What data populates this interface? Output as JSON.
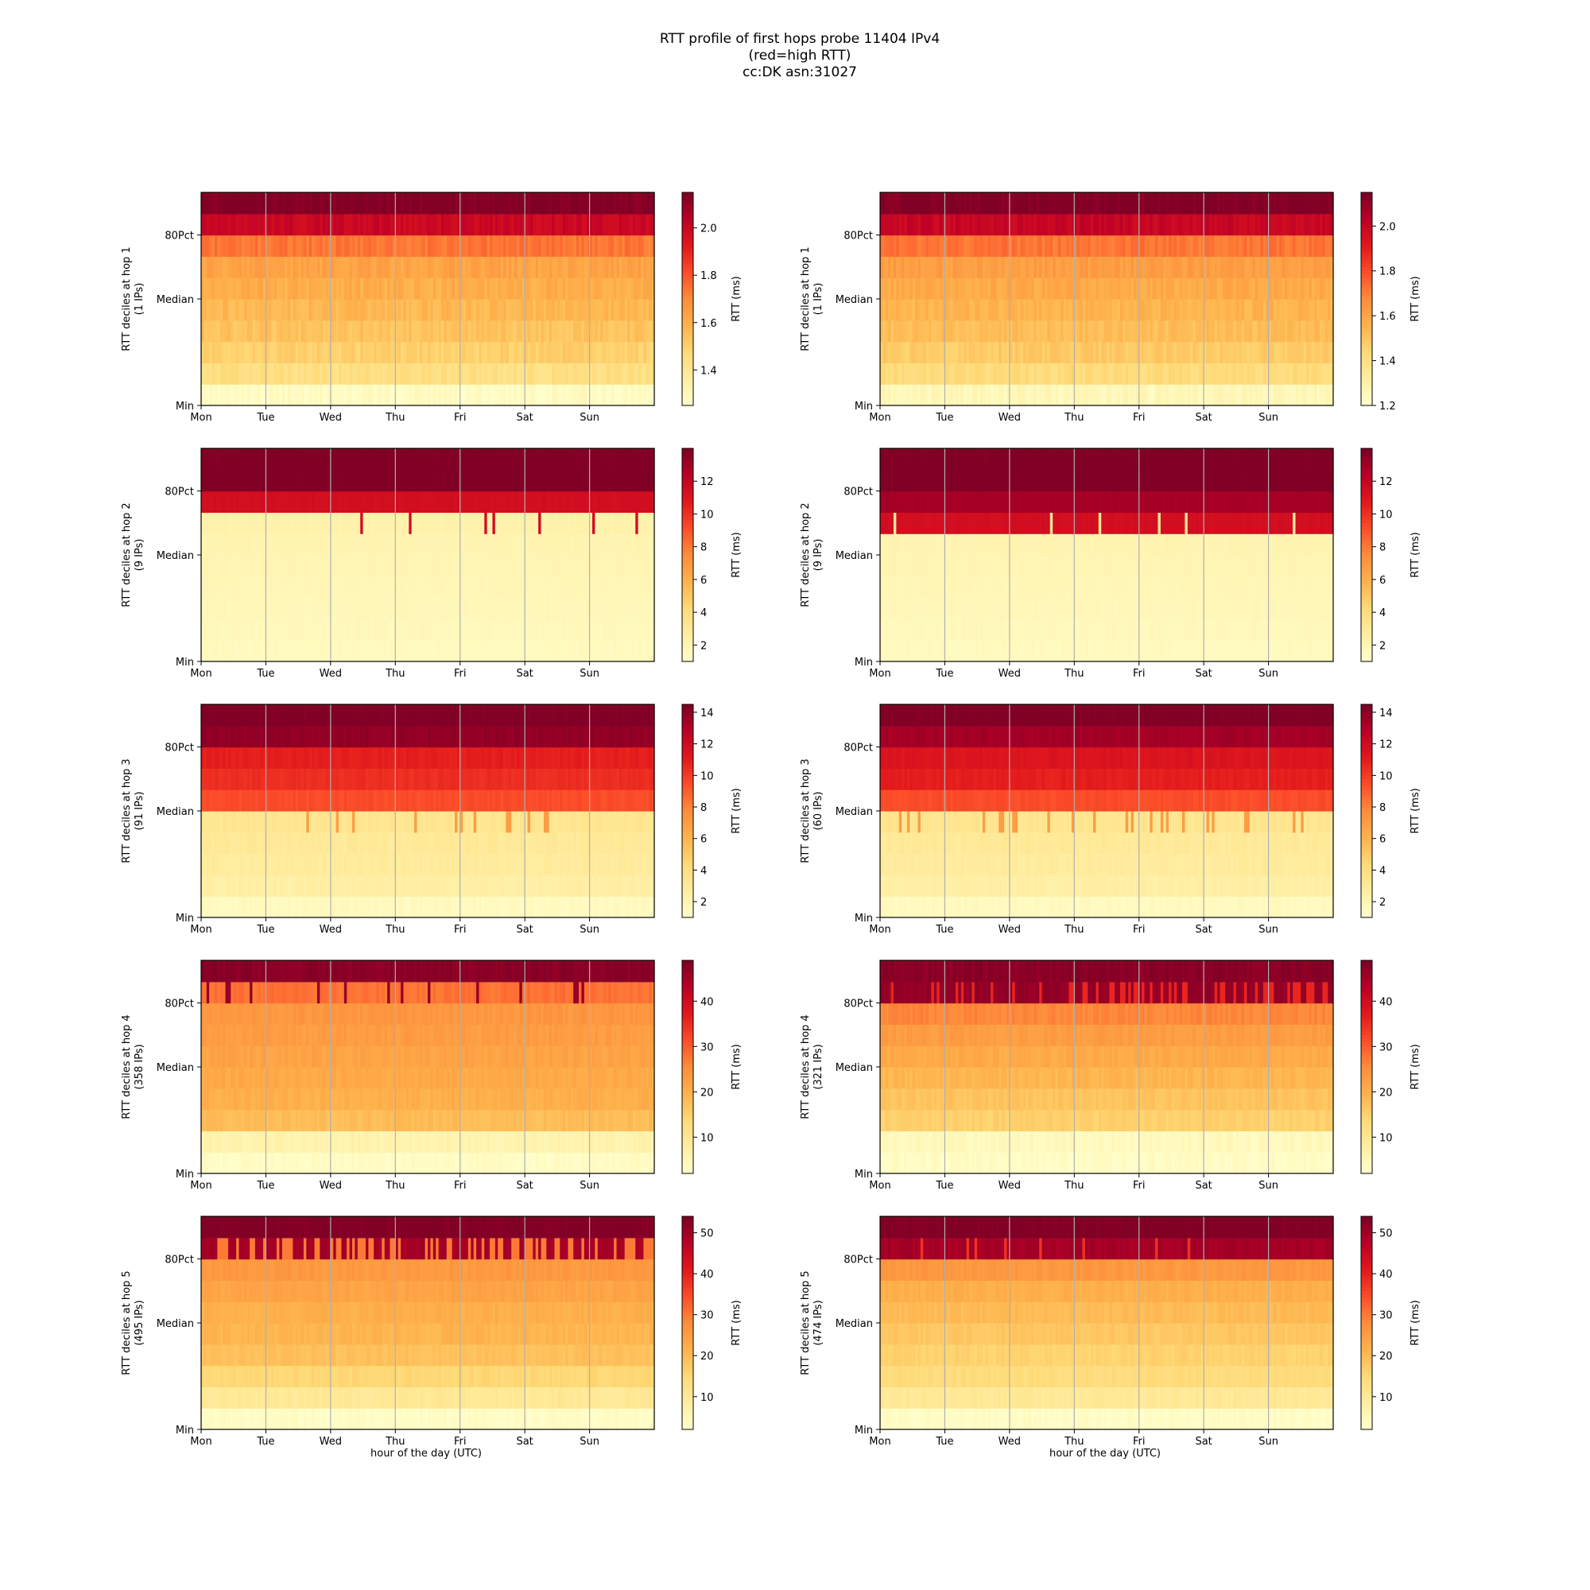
{
  "figure": {
    "title_lines": [
      "RTT profile of first hops probe 11404 IPv4",
      "(red=high RTT)",
      "cc:DK asn:31027"
    ]
  },
  "colormap": [
    "#ffffcc",
    "#ffeda0",
    "#fed976",
    "#feb24c",
    "#fd8d3c",
    "#fc4e2a",
    "#e31a1c",
    "#bd0026",
    "#800026"
  ],
  "chart_data": [
    {
      "type": "heatmap",
      "ylabel": "RTT deciles at hop 1",
      "ylabel2": "(1 IPs)",
      "xticks": [
        "Mon",
        "Tue",
        "Wed",
        "Thu",
        "Fri",
        "Sat",
        "Sun"
      ],
      "yticks": [
        "Min",
        "Median",
        "80Pct"
      ],
      "cbar_label": "RTT (ms)",
      "cbar_ticks": [
        1.4,
        1.6,
        1.8,
        2.0
      ],
      "cbar_tick_labels": [
        "1.4",
        "1.6",
        "1.8",
        "2.0"
      ],
      "cbar_range": [
        1.25,
        2.15
      ],
      "decile_values": [
        1.27,
        1.44,
        1.5,
        1.54,
        1.57,
        1.6,
        1.63,
        1.74,
        2.0,
        2.15
      ],
      "noise": 0.03,
      "spikes": []
    },
    {
      "type": "heatmap",
      "ylabel": "RTT deciles at hop 1",
      "ylabel2": "(1 IPs)",
      "xticks": [
        "Mon",
        "Tue",
        "Wed",
        "Thu",
        "Fri",
        "Sat",
        "Sun"
      ],
      "yticks": [
        "Min",
        "Median",
        "80Pct"
      ],
      "cbar_label": "RTT (ms)",
      "cbar_ticks": [
        1.2,
        1.4,
        1.6,
        1.8,
        2.0
      ],
      "cbar_tick_labels": [
        "1.2",
        "1.4",
        "1.6",
        "1.8",
        "2.0"
      ],
      "cbar_range": [
        1.2,
        2.15
      ],
      "decile_values": [
        1.25,
        1.42,
        1.48,
        1.52,
        1.55,
        1.58,
        1.62,
        1.72,
        2.0,
        2.15
      ],
      "noise": 0.03,
      "spikes": []
    },
    {
      "type": "heatmap",
      "ylabel": "RTT deciles at hop 2",
      "ylabel2": "(9 IPs)",
      "xticks": [
        "Mon",
        "Tue",
        "Wed",
        "Thu",
        "Fri",
        "Sat",
        "Sun"
      ],
      "yticks": [
        "Min",
        "Median",
        "80Pct"
      ],
      "cbar_label": "RTT (ms)",
      "cbar_ticks": [
        2,
        4,
        6,
        8,
        10,
        12
      ],
      "cbar_tick_labels": [
        "2",
        "4",
        "6",
        "8",
        "10",
        "12"
      ],
      "cbar_range": [
        1,
        14
      ],
      "decile_values": [
        1.5,
        1.6,
        1.7,
        1.8,
        1.9,
        2.0,
        2.2,
        11.5,
        14,
        14
      ],
      "noise": 0.1,
      "spikes": [
        {
          "row": 6,
          "p": 0.02,
          "v": 11.5
        }
      ]
    },
    {
      "type": "heatmap",
      "ylabel": "RTT deciles at hop 2",
      "ylabel2": "(9 IPs)",
      "xticks": [
        "Mon",
        "Tue",
        "Wed",
        "Thu",
        "Fri",
        "Sat",
        "Sun"
      ],
      "yticks": [
        "Min",
        "Median",
        "80Pct"
      ],
      "cbar_label": "RTT (ms)",
      "cbar_ticks": [
        2,
        4,
        6,
        8,
        10,
        12
      ],
      "cbar_tick_labels": [
        "2",
        "4",
        "6",
        "8",
        "10",
        "12"
      ],
      "cbar_range": [
        1,
        14
      ],
      "decile_values": [
        1.5,
        1.6,
        1.7,
        1.8,
        1.9,
        2.0,
        11.5,
        13,
        14,
        14
      ],
      "noise": 0.1,
      "spikes": [
        {
          "row": 6,
          "p": 0.05,
          "v": 3
        }
      ]
    },
    {
      "type": "heatmap",
      "ylabel": "RTT deciles at hop 3",
      "ylabel2": "(91 IPs)",
      "xticks": [
        "Mon",
        "Tue",
        "Wed",
        "Thu",
        "Fri",
        "Sat",
        "Sun"
      ],
      "yticks": [
        "Min",
        "Median",
        "80Pct"
      ],
      "cbar_label": "RTT (ms)",
      "cbar_ticks": [
        2,
        4,
        6,
        8,
        10,
        12,
        14
      ],
      "cbar_tick_labels": [
        "2",
        "4",
        "6",
        "8",
        "10",
        "12",
        "14"
      ],
      "cbar_range": [
        1,
        14.5
      ],
      "decile_values": [
        1.5,
        2.5,
        2.8,
        3.0,
        3.3,
        9.5,
        10.5,
        11.0,
        14,
        14.5
      ],
      "noise": 0.2,
      "spikes": [
        {
          "row": 4,
          "p": 0.12,
          "v": 7
        }
      ]
    },
    {
      "type": "heatmap",
      "ylabel": "RTT deciles at hop 3",
      "ylabel2": "(60 IPs)",
      "xticks": [
        "Mon",
        "Tue",
        "Wed",
        "Thu",
        "Fri",
        "Sat",
        "Sun"
      ],
      "yticks": [
        "Min",
        "Median",
        "80Pct"
      ],
      "cbar_label": "RTT (ms)",
      "cbar_ticks": [
        2,
        4,
        6,
        8,
        10,
        12,
        14
      ],
      "cbar_tick_labels": [
        "2",
        "4",
        "6",
        "8",
        "10",
        "12",
        "14"
      ],
      "cbar_range": [
        1,
        14.5
      ],
      "decile_values": [
        1.5,
        2.5,
        2.8,
        3.0,
        3.3,
        9.5,
        11.0,
        11.5,
        13.5,
        14.5
      ],
      "noise": 0.2,
      "spikes": [
        {
          "row": 4,
          "p": 0.15,
          "v": 7
        }
      ]
    },
    {
      "type": "heatmap",
      "ylabel": "RTT deciles at hop 4",
      "ylabel2": "(358 IPs)",
      "xticks": [
        "Mon",
        "Tue",
        "Wed",
        "Thu",
        "Fri",
        "Sat",
        "Sun"
      ],
      "yticks": [
        "Min",
        "Median",
        "80Pct"
      ],
      "cbar_label": "RTT (ms)",
      "cbar_ticks": [
        10,
        20,
        30,
        40
      ],
      "cbar_tick_labels": [
        "10",
        "20",
        "30",
        "40"
      ],
      "cbar_range": [
        2,
        49
      ],
      "decile_values": [
        3,
        6,
        18,
        20,
        21,
        22,
        23,
        24,
        28,
        48
      ],
      "noise": 1.0,
      "spikes": [
        {
          "row": 8,
          "p": 0.08,
          "v": 47
        }
      ]
    },
    {
      "type": "heatmap",
      "ylabel": "RTT deciles at hop 4",
      "ylabel2": "(321 IPs)",
      "xticks": [
        "Mon",
        "Tue",
        "Wed",
        "Thu",
        "Fri",
        "Sat",
        "Sun"
      ],
      "yticks": [
        "Min",
        "Median",
        "80Pct"
      ],
      "cbar_label": "RTT (ms)",
      "cbar_ticks": [
        10,
        20,
        30,
        40
      ],
      "cbar_tick_labels": [
        "10",
        "20",
        "30",
        "40"
      ],
      "cbar_range": [
        2,
        49
      ],
      "decile_values": [
        3,
        4,
        15,
        17,
        19,
        21,
        23,
        26,
        47,
        48
      ],
      "noise": 1.0,
      "spikes": [
        {
          "row": 8,
          "p": 0.25,
          "v": 36
        }
      ]
    },
    {
      "type": "heatmap",
      "ylabel": "RTT deciles at hop 5",
      "ylabel2": "(495 IPs)",
      "xticks": [
        "Mon",
        "Tue",
        "Wed",
        "Thu",
        "Fri",
        "Sat",
        "Sun"
      ],
      "yticks": [
        "Min",
        "Median",
        "80Pct"
      ],
      "cbar_label": "RTT (ms)",
      "cbar_ticks": [
        10,
        20,
        30,
        40,
        50
      ],
      "cbar_tick_labels": [
        "10",
        "20",
        "30",
        "40",
        "50"
      ],
      "cbar_range": [
        2,
        54
      ],
      "decile_values": [
        3,
        10,
        15,
        19,
        21,
        22,
        24,
        26,
        50,
        54
      ],
      "noise": 1.0,
      "spikes": [
        {
          "row": 8,
          "p": 0.35,
          "v": 30
        }
      ]
    },
    {
      "type": "heatmap",
      "ylabel": "RTT deciles at hop 5",
      "ylabel2": "(474 IPs)",
      "xticks": [
        "Mon",
        "Tue",
        "Wed",
        "Thu",
        "Fri",
        "Sat",
        "Sun"
      ],
      "yticks": [
        "Min",
        "Median",
        "80Pct"
      ],
      "cbar_label": "RTT (ms)",
      "cbar_ticks": [
        10,
        20,
        30,
        40,
        50
      ],
      "cbar_tick_labels": [
        "10",
        "20",
        "30",
        "40",
        "50"
      ],
      "cbar_range": [
        2,
        54
      ],
      "decile_values": [
        3,
        10,
        14,
        16,
        18,
        20,
        22,
        26,
        50,
        54
      ],
      "noise": 1.0,
      "spikes": [
        {
          "row": 8,
          "p": 0.06,
          "v": 38
        }
      ]
    }
  ],
  "xaxis_label": "hour of the day (UTC)"
}
